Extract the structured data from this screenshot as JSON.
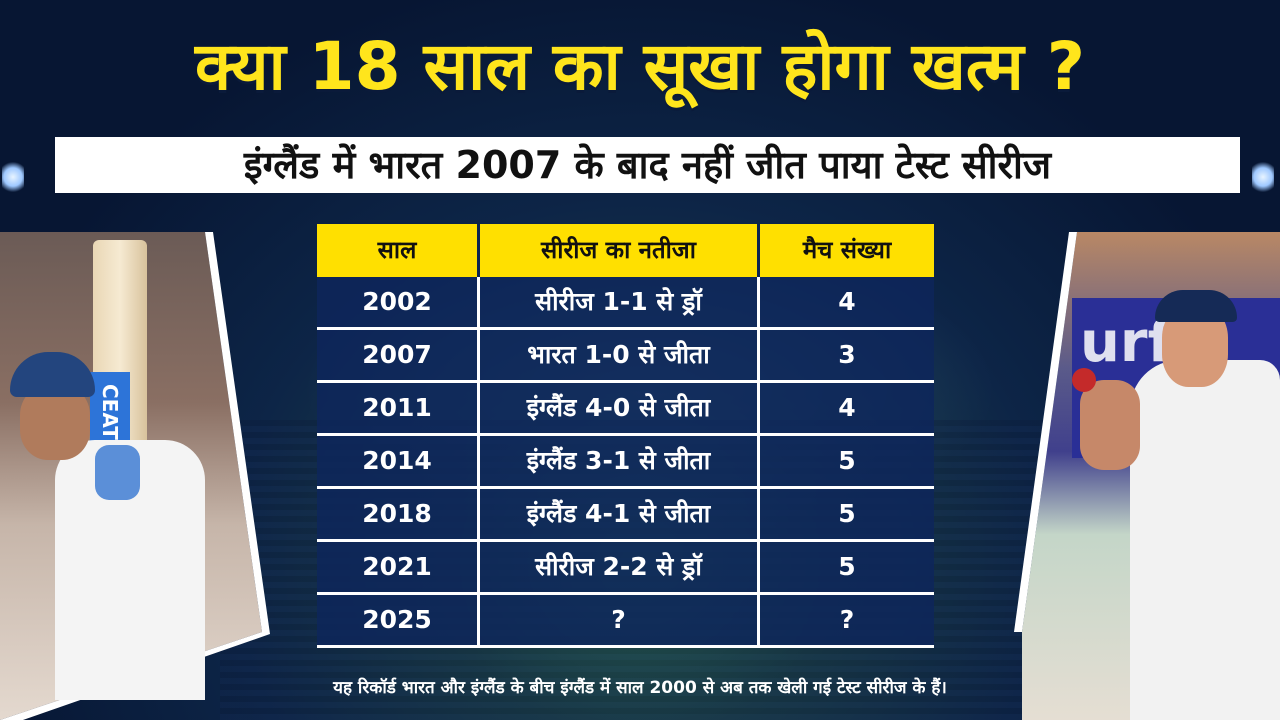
{
  "headline": "क्या 18 साल का सूखा होगा खत्म ?",
  "subtitle": "इंग्लैंड में भारत 2007 के बाद नहीं जीत पाया टेस्ट सीरीज",
  "table": {
    "headers": [
      "साल",
      "सीरीज का नतीजा",
      "मैच संख्या"
    ],
    "rows": [
      {
        "year": "2002",
        "result": "सीरीज 1-1 से ड्रॉ",
        "matches": "4"
      },
      {
        "year": "2007",
        "result": "भारत 1-0 से जीता",
        "matches": "3"
      },
      {
        "year": "2011",
        "result": "इंग्लैंड 4-0 से जीता",
        "matches": "4"
      },
      {
        "year": "2014",
        "result": "इंग्लैंड 3-1 से जीता",
        "matches": "5"
      },
      {
        "year": "2018",
        "result": "इंग्लैंड 4-1 से जीता",
        "matches": "5"
      },
      {
        "year": "2021",
        "result": "सीरीज 2-2 से ड्रॉ",
        "matches": "5"
      },
      {
        "year": "2025",
        "result": "?",
        "matches": "?"
      }
    ]
  },
  "footnote": "यह रिकॉर्ड भारत और इंग्लैंड के बीच इंग्लैंड में साल 2000 से अब तक खेली गई टेस्ट सीरीज के हैं।",
  "left_photo": {
    "bat_logo": "CEAT"
  },
  "right_photo": {
    "banner_text": "urfit"
  },
  "colors": {
    "headline": "#ffe51c",
    "header_bg": "#ffe000",
    "table_bg": "#0e265c"
  }
}
